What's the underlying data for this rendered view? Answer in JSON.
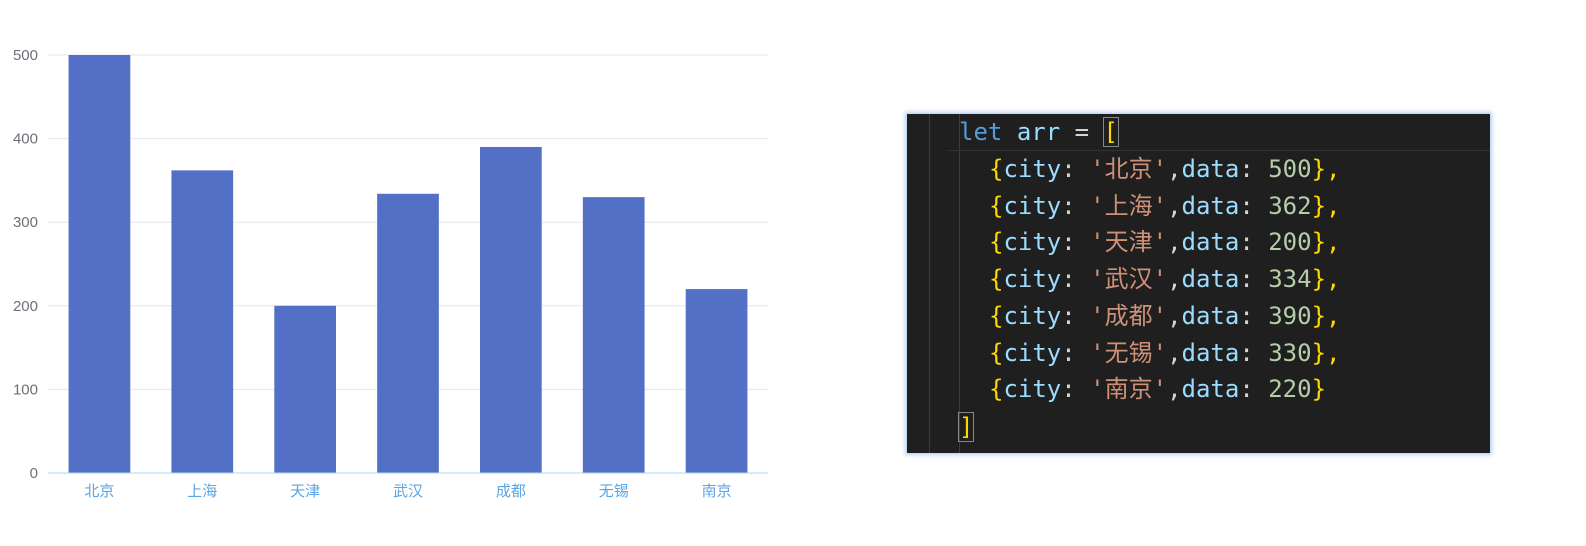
{
  "chart_data": {
    "type": "bar",
    "categories": [
      "北京",
      "上海",
      "天津",
      "武汉",
      "成都",
      "无锡",
      "南京"
    ],
    "values": [
      500,
      362,
      200,
      334,
      390,
      330,
      220
    ],
    "ylim": [
      0,
      500
    ],
    "yticks": [
      0,
      100,
      200,
      300,
      400,
      500
    ],
    "grid": true,
    "colors": {
      "bar": "#5470c6",
      "grid": "#e0e6f1",
      "axis": "#a6d8f0"
    }
  },
  "code": {
    "keyword": "let",
    "variable": "arr",
    "operator": "=",
    "open": "[",
    "close": "]",
    "key_city": "city",
    "key_data": "data",
    "items": [
      {
        "city": "'北京'",
        "data": "500",
        "tail": "},"
      },
      {
        "city": "'上海'",
        "data": "362",
        "tail": "},"
      },
      {
        "city": "'天津'",
        "data": "200",
        "tail": "},"
      },
      {
        "city": "'武汉'",
        "data": "334",
        "tail": "},"
      },
      {
        "city": "'成都'",
        "data": "390",
        "tail": "},"
      },
      {
        "city": "'无锡'",
        "data": "330",
        "tail": "},"
      },
      {
        "city": "'南京'",
        "data": "220",
        "tail": "}"
      }
    ]
  }
}
